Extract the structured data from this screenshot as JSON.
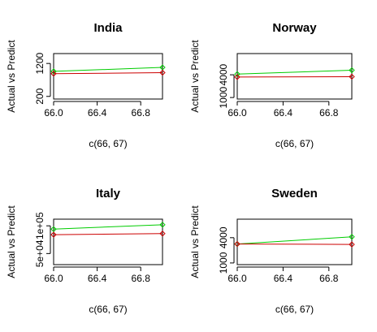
{
  "chart_data": [
    {
      "type": "line",
      "title": "India",
      "xlabel": "c(66, 67)",
      "ylabel": "Actual vs Predict",
      "x": [
        66,
        67
      ],
      "xlim": [
        66,
        67
      ],
      "xticks": [
        "66.0",
        "66.4",
        "66.8"
      ],
      "ylim": [
        120,
        1500
      ],
      "yticks": [
        "200",
        "1200"
      ],
      "yticks_values": [
        200,
        1200
      ],
      "series": [
        {
          "color": "#00cc00",
          "values": [
            960,
            1080
          ]
        },
        {
          "color": "#cc0000",
          "values": [
            890,
            920
          ]
        }
      ]
    },
    {
      "type": "line",
      "title": "Norway",
      "xlabel": "c(66, 67)",
      "ylabel": "Actual vs Predict",
      "x": [
        66,
        67
      ],
      "xlim": [
        66,
        67
      ],
      "xticks": [
        "66.0",
        "66.4",
        "66.8"
      ],
      "ylim": [
        800,
        6800
      ],
      "yticks": [
        "1000",
        "4000"
      ],
      "yticks_values": [
        1000,
        4000
      ],
      "series": [
        {
          "color": "#00cc00",
          "values": [
            4100,
            4600
          ]
        },
        {
          "color": "#cc0000",
          "values": [
            3700,
            3750
          ]
        }
      ]
    },
    {
      "type": "line",
      "title": "Italy",
      "xlabel": "c(66, 67)",
      "ylabel": "Actual vs Predict",
      "x": [
        66,
        67
      ],
      "xlim": [
        66,
        67
      ],
      "xticks": [
        "66.0",
        "66.4",
        "66.8"
      ],
      "ylim": [
        30000,
        112000
      ],
      "yticks": [
        "5e+04",
        "1e+05"
      ],
      "yticks_values": [
        50000,
        100000
      ],
      "series": [
        {
          "color": "#00cc00",
          "values": [
            94000,
            102000
          ]
        },
        {
          "color": "#cc0000",
          "values": [
            84000,
            86000
          ]
        }
      ]
    },
    {
      "type": "line",
      "title": "Sweden",
      "xlabel": "c(66, 67)",
      "ylabel": "Actual vs Predict",
      "x": [
        66,
        67
      ],
      "xlim": [
        66,
        67
      ],
      "xticks": [
        "66.0",
        "66.4",
        "66.8"
      ],
      "ylim": [
        800,
        6200
      ],
      "yticks": [
        "1000",
        "4000"
      ],
      "yticks_values": [
        1000,
        4000
      ],
      "series": [
        {
          "color": "#00cc00",
          "values": [
            3250,
            4100
          ]
        },
        {
          "color": "#cc0000",
          "values": [
            3250,
            3200
          ]
        }
      ]
    }
  ]
}
